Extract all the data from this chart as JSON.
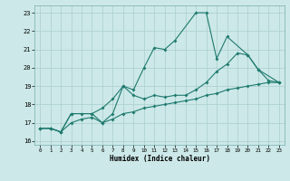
{
  "title": "",
  "xlabel": "Humidex (Indice chaleur)",
  "xlim": [
    -0.5,
    23.5
  ],
  "ylim": [
    15.8,
    23.4
  ],
  "yticks": [
    16,
    17,
    18,
    19,
    20,
    21,
    22,
    23
  ],
  "xticks": [
    0,
    1,
    2,
    3,
    4,
    5,
    6,
    7,
    8,
    9,
    10,
    11,
    12,
    13,
    14,
    15,
    16,
    17,
    18,
    19,
    20,
    21,
    22,
    23
  ],
  "bg_color": "#cce8e8",
  "line_color": "#1e7a6e",
  "grid_color": "#aacece",
  "lines": [
    {
      "x": [
        0,
        1,
        2,
        3,
        4,
        5,
        6,
        7,
        8,
        9,
        10,
        11,
        12,
        13,
        15,
        16,
        17,
        18,
        20,
        21,
        23
      ],
      "y": [
        16.7,
        16.7,
        16.5,
        17.5,
        17.5,
        17.5,
        17.0,
        17.5,
        19.0,
        18.8,
        20.0,
        21.1,
        21.0,
        21.5,
        23.0,
        23.0,
        20.5,
        21.7,
        20.7,
        19.9,
        19.2
      ]
    },
    {
      "x": [
        0,
        1,
        2,
        3,
        5,
        6,
        7,
        8,
        9,
        10,
        11,
        12,
        13,
        14,
        15,
        16,
        17,
        18,
        19,
        20,
        21,
        22,
        23
      ],
      "y": [
        16.7,
        16.7,
        16.5,
        17.5,
        17.5,
        17.8,
        18.3,
        19.0,
        18.5,
        18.3,
        18.5,
        18.4,
        18.5,
        18.5,
        18.8,
        19.2,
        19.8,
        20.2,
        20.8,
        20.7,
        19.9,
        19.3,
        19.2
      ]
    },
    {
      "x": [
        0,
        1,
        2,
        3,
        4,
        5,
        6,
        7,
        8,
        9,
        10,
        11,
        12,
        13,
        14,
        15,
        16,
        17,
        18,
        19,
        20,
        21,
        22,
        23
      ],
      "y": [
        16.7,
        16.7,
        16.5,
        17.0,
        17.2,
        17.3,
        17.0,
        17.2,
        17.5,
        17.6,
        17.8,
        17.9,
        18.0,
        18.1,
        18.2,
        18.3,
        18.5,
        18.6,
        18.8,
        18.9,
        19.0,
        19.1,
        19.2,
        19.2
      ]
    }
  ],
  "figsize": [
    3.2,
    2.0
  ],
  "dpi": 100
}
